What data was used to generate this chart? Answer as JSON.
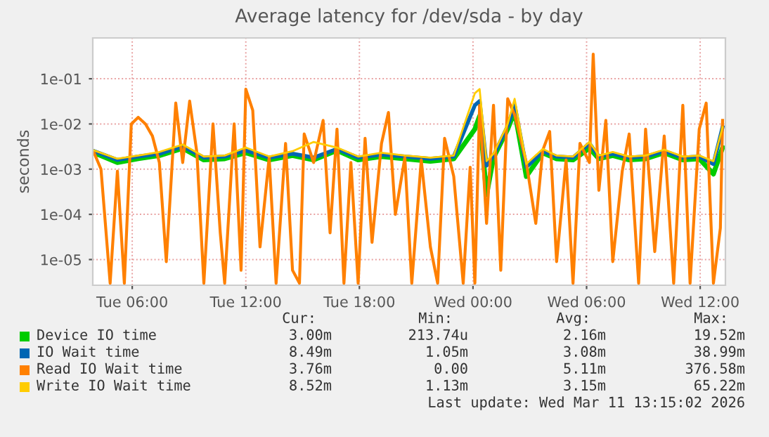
{
  "chart_data": {
    "type": "line",
    "title": "Average latency for /dev/sda - by day",
    "ylabel": "seconds",
    "log": "y",
    "grid": true,
    "legend": "bottom",
    "marker": "none",
    "line_style": "solid",
    "xlim": [
      "2026-03-10T03:55",
      "2026-03-11T13:20"
    ],
    "xticks": [
      {
        "value": "2026-03-10T06:00",
        "label": "Tue 06:00"
      },
      {
        "value": "2026-03-10T12:00",
        "label": "Tue 12:00"
      },
      {
        "value": "2026-03-10T18:00",
        "label": "Tue 18:00"
      },
      {
        "value": "2026-03-11T00:00",
        "label": "Wed 00:00"
      },
      {
        "value": "2026-03-11T06:00",
        "label": "Wed 06:00"
      },
      {
        "value": "2026-03-11T12:00",
        "label": "Wed 12:00"
      }
    ],
    "ylim": [
      2.7e-06,
      0.8
    ],
    "yticks": [
      {
        "value": 1e-05,
        "label": "1e-05"
      },
      {
        "value": 0.0001,
        "label": "1e-04"
      },
      {
        "value": 0.001,
        "label": "1e-03"
      },
      {
        "value": 0.01,
        "label": "1e-02"
      },
      {
        "value": 0.1,
        "label": "1e-01"
      }
    ],
    "x": [
      "2026-03-10T03:59",
      "2026-03-10T05:13",
      "2026-03-10T06:19",
      "2026-03-10T07:26",
      "2026-03-10T08:40",
      "2026-03-10T09:47",
      "2026-03-10T10:53",
      "2026-03-10T12:00",
      "2026-03-10T13:14",
      "2026-03-10T14:28",
      "2026-03-10T15:35",
      "2026-03-10T16:49",
      "2026-03-10T17:56",
      "2026-03-10T19:10",
      "2026-03-10T20:24",
      "2026-03-10T21:45",
      "2026-03-10T22:59",
      "2026-03-11T00:06",
      "2026-03-11T00:21",
      "2026-03-11T00:43",
      "2026-03-11T01:05",
      "2026-03-11T01:50",
      "2026-03-11T02:12",
      "2026-03-11T02:49",
      "2026-03-11T03:41",
      "2026-03-11T04:25",
      "2026-03-11T05:17",
      "2026-03-11T06:09",
      "2026-03-11T06:39",
      "2026-03-11T07:23",
      "2026-03-11T08:15",
      "2026-03-11T09:07",
      "2026-03-11T10:06",
      "2026-03-11T11:05",
      "2026-03-11T11:57",
      "2026-03-11T12:42",
      "2026-03-11T13:11"
    ],
    "series": [
      {
        "name": "Device IO time",
        "color": "#00cc00",
        "values": [
          0.0023,
          0.0014,
          0.0017,
          0.002,
          0.0029,
          0.0016,
          0.0017,
          0.0023,
          0.0016,
          0.002,
          0.0016,
          0.0026,
          0.0016,
          0.0019,
          0.0017,
          0.0015,
          0.0017,
          0.0077,
          0.015,
          0.00027,
          0.0018,
          0.0077,
          0.019,
          0.00069,
          0.0023,
          0.0017,
          0.0016,
          0.0029,
          0.0017,
          0.002,
          0.0016,
          0.0017,
          0.0023,
          0.0016,
          0.0017,
          0.00078,
          0.003
        ]
      },
      {
        "name": "IO Wait time",
        "color": "#0066b3",
        "values": [
          0.0025,
          0.0016,
          0.0019,
          0.0022,
          0.0032,
          0.0018,
          0.0019,
          0.0026,
          0.0018,
          0.0022,
          0.0018,
          0.0028,
          0.0018,
          0.0021,
          0.0019,
          0.0017,
          0.0019,
          0.026,
          0.032,
          0.0012,
          0.002,
          0.009,
          0.026,
          0.0011,
          0.0025,
          0.0019,
          0.0018,
          0.0037,
          0.0019,
          0.0022,
          0.0018,
          0.0019,
          0.0025,
          0.0018,
          0.0019,
          0.0013,
          0.0085
        ]
      },
      {
        "name": "Read IO Wait time",
        "color": "#ff8000",
        "x": [
          "2026-03-10T03:59",
          "2026-03-10T04:21",
          "2026-03-10T04:50",
          "2026-03-10T05:13",
          "2026-03-10T05:35",
          "2026-03-10T05:57",
          "2026-03-10T06:19",
          "2026-03-10T06:42",
          "2026-03-10T07:04",
          "2026-03-10T07:26",
          "2026-03-10T07:48",
          "2026-03-10T08:18",
          "2026-03-10T08:40",
          "2026-03-10T09:02",
          "2026-03-10T09:25",
          "2026-03-10T09:47",
          "2026-03-10T10:16",
          "2026-03-10T10:39",
          "2026-03-10T10:53",
          "2026-03-10T11:23",
          "2026-03-10T11:45",
          "2026-03-10T12:00",
          "2026-03-10T12:22",
          "2026-03-10T12:45",
          "2026-03-10T13:14",
          "2026-03-10T13:36",
          "2026-03-10T14:06",
          "2026-03-10T14:28",
          "2026-03-10T14:50",
          "2026-03-10T15:05",
          "2026-03-10T15:35",
          "2026-03-10T16:05",
          "2026-03-10T16:27",
          "2026-03-10T16:49",
          "2026-03-10T17:11",
          "2026-03-10T17:33",
          "2026-03-10T17:56",
          "2026-03-10T18:18",
          "2026-03-10T18:40",
          "2026-03-10T19:10",
          "2026-03-10T19:32",
          "2026-03-10T19:54",
          "2026-03-10T20:24",
          "2026-03-10T20:46",
          "2026-03-10T21:16",
          "2026-03-10T21:45",
          "2026-03-10T22:08",
          "2026-03-10T22:30",
          "2026-03-10T22:59",
          "2026-03-10T23:29",
          "2026-03-10T23:51",
          "2026-03-11T00:06",
          "2026-03-11T00:21",
          "2026-03-11T00:43",
          "2026-03-11T01:05",
          "2026-03-11T01:28",
          "2026-03-11T01:50",
          "2026-03-11T02:12",
          "2026-03-11T02:49",
          "2026-03-11T03:19",
          "2026-03-11T03:41",
          "2026-03-11T04:03",
          "2026-03-11T04:25",
          "2026-03-11T04:55",
          "2026-03-11T05:17",
          "2026-03-11T05:39",
          "2026-03-11T06:09",
          "2026-03-11T06:21",
          "2026-03-11T06:39",
          "2026-03-11T07:01",
          "2026-03-11T07:23",
          "2026-03-11T07:53",
          "2026-03-11T08:15",
          "2026-03-11T08:45",
          "2026-03-11T09:07",
          "2026-03-11T09:36",
          "2026-03-11T10:06",
          "2026-03-11T10:36",
          "2026-03-11T11:05",
          "2026-03-11T11:28",
          "2026-03-11T11:57",
          "2026-03-11T12:19",
          "2026-03-11T12:42",
          "2026-03-11T13:04",
          "2026-03-11T13:11"
        ],
        "values": [
          0.0023,
          0.001,
          3e-06,
          0.0009,
          3e-06,
          0.01,
          0.014,
          0.01,
          0.0054,
          0.0014,
          9e-06,
          0.029,
          0.0014,
          0.032,
          0.0023,
          3e-06,
          0.01,
          3.9e-05,
          3e-06,
          0.01,
          5.8e-06,
          0.059,
          0.02,
          1.9e-05,
          0.0018,
          3e-06,
          0.0037,
          5.8e-06,
          3e-06,
          0.006,
          0.0014,
          0.012,
          3.9e-05,
          0.0077,
          3e-06,
          0.0014,
          3e-06,
          0.0048,
          2.4e-05,
          0.0037,
          0.018,
          0.0001,
          0.0018,
          3e-06,
          0.0016,
          1.9e-05,
          3e-06,
          0.0048,
          0.00069,
          3e-06,
          0.0011,
          3e-06,
          0.026,
          6.3e-05,
          0.026,
          5.8e-06,
          0.036,
          0.016,
          0.0014,
          6.3e-05,
          0.0026,
          0.0068,
          9e-06,
          0.0016,
          3e-06,
          0.0037,
          0.0014,
          0.35,
          0.00034,
          0.012,
          9e-06,
          0.0009,
          0.006,
          3e-06,
          0.0077,
          1.5e-05,
          0.0054,
          3e-06,
          0.026,
          3e-06,
          0.0077,
          0.029,
          3e-06,
          5e-05,
          0.012
        ]
      },
      {
        "name": "Write IO Wait time",
        "color": "#ffcc00",
        "values": [
          0.0026,
          0.0017,
          0.002,
          0.0024,
          0.0035,
          0.0019,
          0.002,
          0.003,
          0.0019,
          0.0025,
          0.004,
          0.003,
          0.0019,
          0.0023,
          0.002,
          0.0018,
          0.002,
          0.048,
          0.059,
          0.0015,
          0.0022,
          0.01,
          0.036,
          0.0013,
          0.0028,
          0.002,
          0.0019,
          0.004,
          0.002,
          0.0024,
          0.0019,
          0.002,
          0.0027,
          0.0019,
          0.002,
          0.0015,
          0.0085
        ]
      }
    ],
    "annotations": [
      "Cur:",
      "Min:",
      "Avg:",
      "Max:",
      "3.00m",
      "213.74u",
      "2.16m",
      "19.52m",
      "8.49m",
      "1.05m",
      "3.08m",
      "38.99m",
      "3.76m",
      "0.00",
      "5.11m",
      "376.58m",
      "8.52m",
      "1.13m",
      "3.15m",
      "65.22m",
      "Last update: Wed Mar 11 13:15:02 2026"
    ]
  }
}
